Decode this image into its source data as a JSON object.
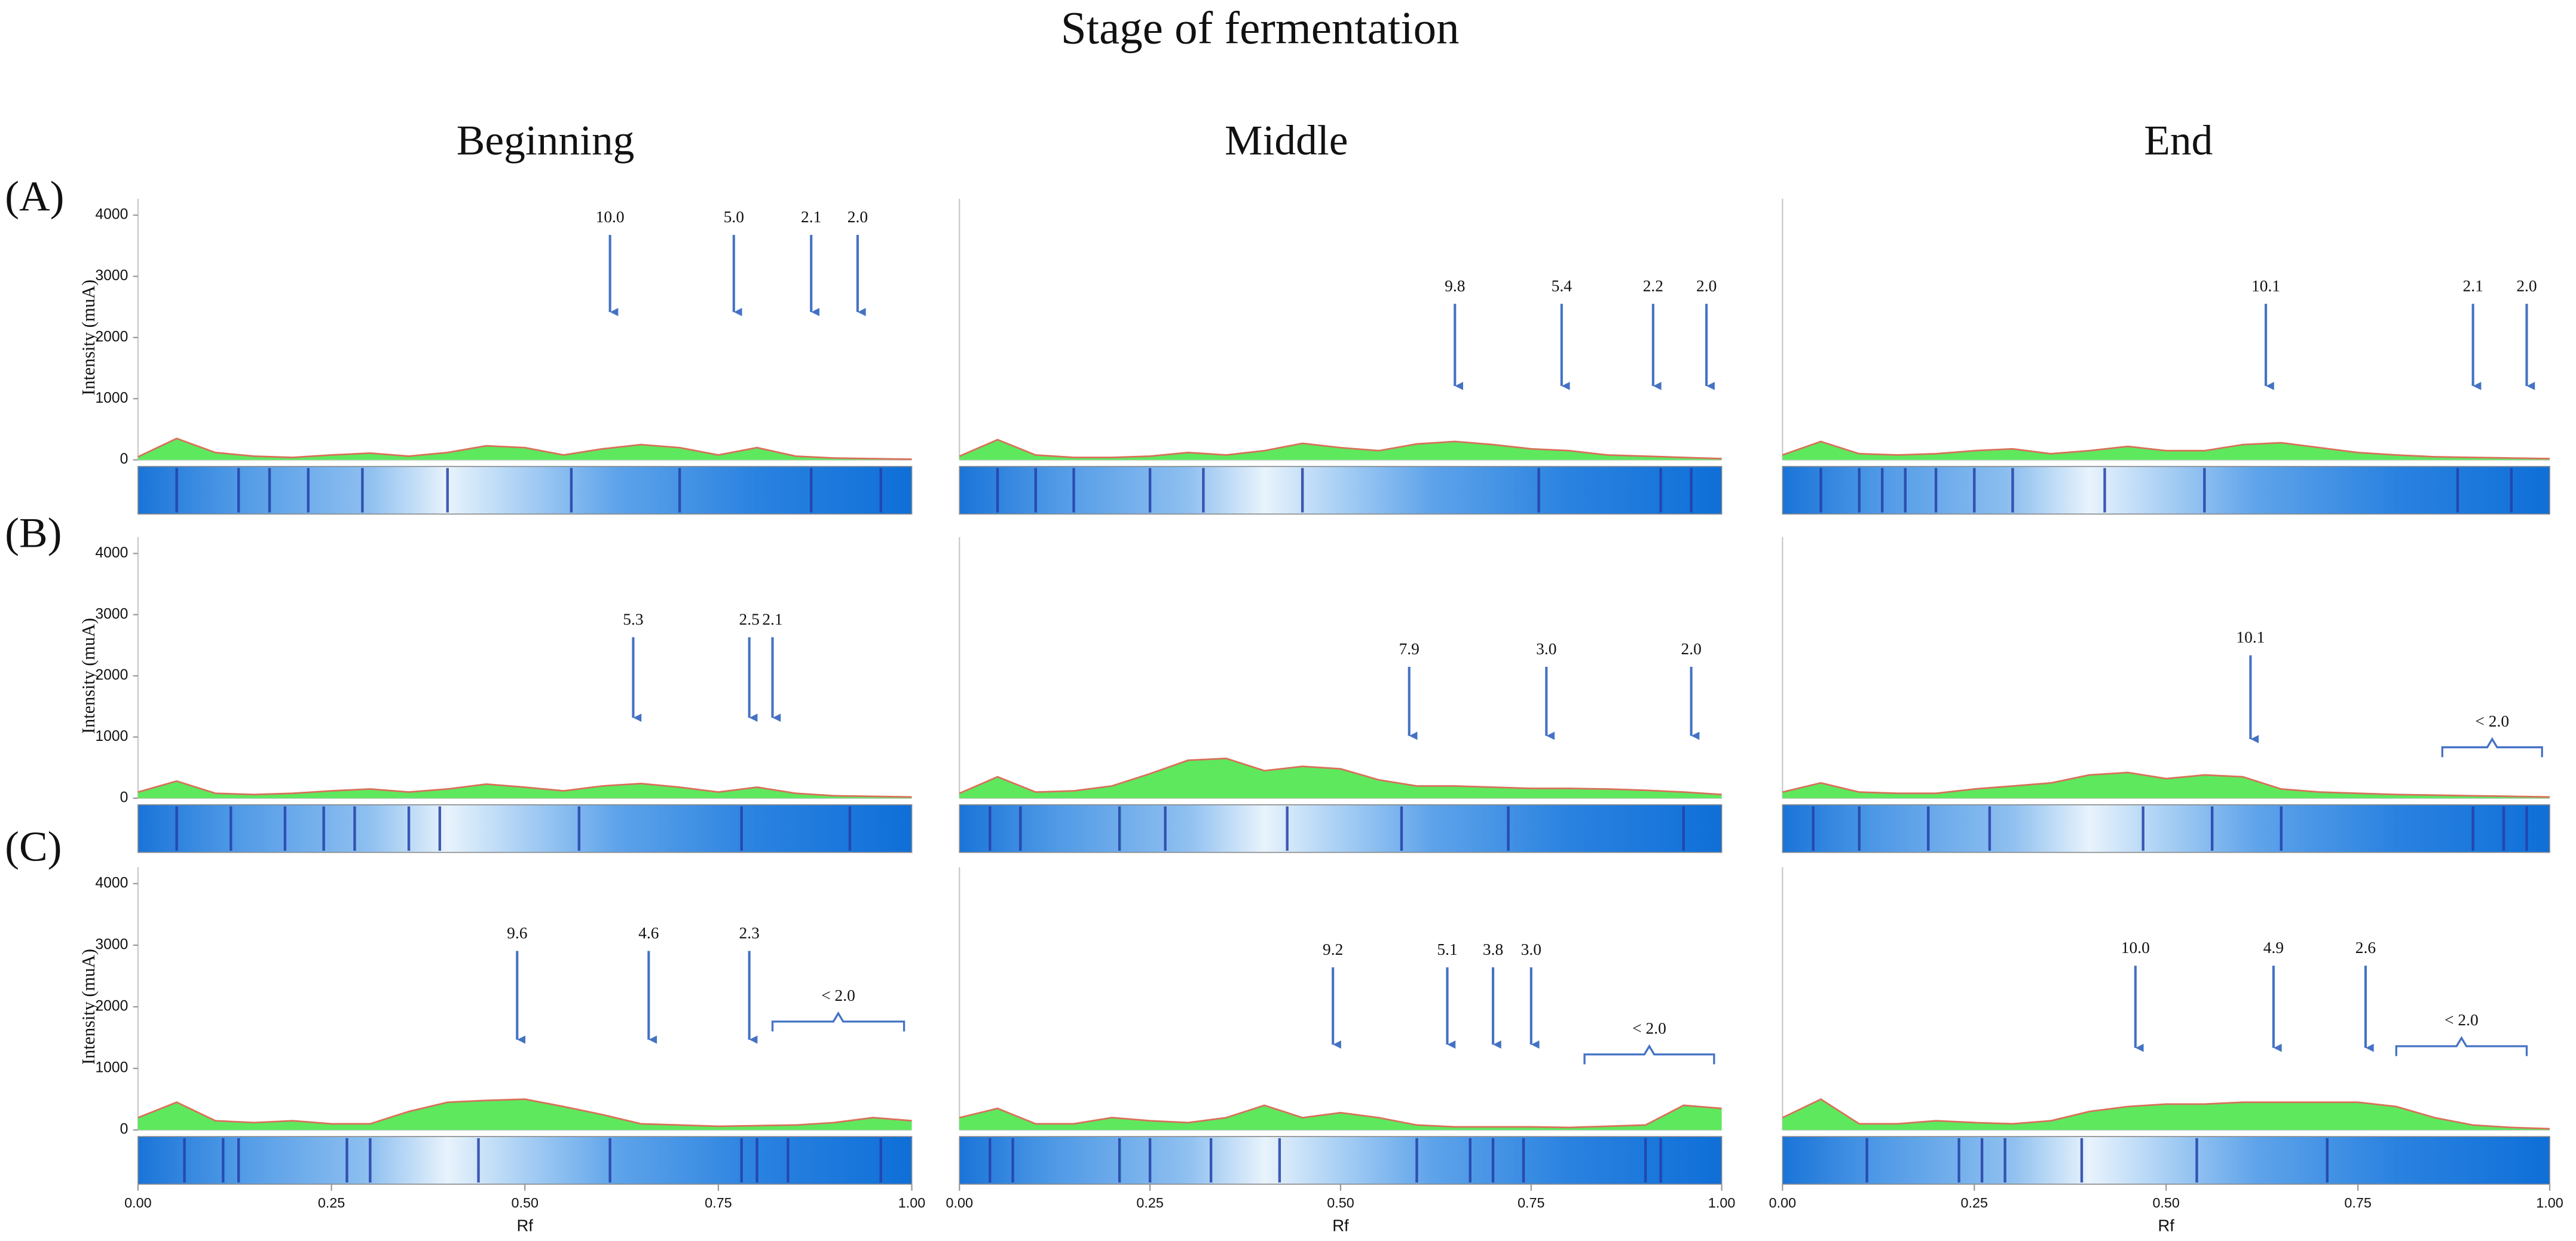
{
  "title": "Stage of fermentation",
  "columns": [
    "Beginning",
    "Middle",
    "End"
  ],
  "rows": [
    "(A)",
    "(B)",
    "(C)"
  ],
  "chart_data": [
    {
      "type": "area",
      "x": [
        0,
        0.05,
        0.1,
        0.15,
        0.2,
        0.25,
        0.3,
        0.35,
        0.4,
        0.45,
        0.5,
        0.55,
        0.6,
        0.65,
        0.7,
        0.75,
        0.8,
        0.85,
        0.9,
        0.95,
        1
      ],
      "values": [
        50,
        350,
        120,
        60,
        40,
        80,
        110,
        60,
        120,
        230,
        200,
        80,
        180,
        250,
        200,
        80,
        200,
        60,
        30,
        20,
        10
      ],
      "color": "#5ee85e",
      "line_color": "#d9705a",
      "xlim": [
        0,
        1
      ],
      "ylim": [
        0,
        4000
      ],
      "yticks": [
        0,
        1000,
        2000,
        3000,
        4000
      ],
      "y_label": "Intensity (muA)",
      "bands": [
        0.05,
        0.13,
        0.17,
        0.22,
        0.29,
        0.4,
        0.56,
        0.7,
        0.87,
        0.96
      ],
      "annotations": [
        {
          "label": "10.0",
          "x": 0.61
        },
        {
          "label": "5.0",
          "x": 0.77
        },
        {
          "label": "2.1",
          "x": 0.87
        },
        {
          "label": "2.0",
          "x": 0.93
        }
      ]
    },
    {
      "type": "area",
      "x": [
        0,
        0.05,
        0.1,
        0.15,
        0.2,
        0.25,
        0.3,
        0.35,
        0.4,
        0.45,
        0.5,
        0.55,
        0.6,
        0.65,
        0.7,
        0.75,
        0.8,
        0.85,
        0.9,
        0.95,
        1
      ],
      "values": [
        60,
        330,
        80,
        40,
        40,
        60,
        120,
        80,
        150,
        270,
        200,
        150,
        260,
        300,
        250,
        180,
        150,
        80,
        60,
        40,
        20
      ],
      "color": "#5ee85e",
      "line_color": "#d9705a",
      "xlim": [
        0,
        1
      ],
      "ylim": [
        0,
        4000
      ],
      "bands": [
        0.05,
        0.1,
        0.15,
        0.25,
        0.32,
        0.45,
        0.76,
        0.92,
        0.96
      ],
      "annotations": [
        {
          "label": "9.8",
          "x": 0.65
        },
        {
          "label": "5.4",
          "x": 0.79
        },
        {
          "label": "2.2",
          "x": 0.91
        },
        {
          "label": "2.0",
          "x": 0.98
        }
      ]
    },
    {
      "type": "area",
      "x": [
        0,
        0.05,
        0.1,
        0.15,
        0.2,
        0.25,
        0.3,
        0.35,
        0.4,
        0.45,
        0.5,
        0.55,
        0.6,
        0.65,
        0.7,
        0.75,
        0.8,
        0.85,
        0.9,
        0.95,
        1
      ],
      "values": [
        80,
        300,
        100,
        80,
        100,
        150,
        180,
        100,
        150,
        220,
        150,
        150,
        250,
        280,
        200,
        120,
        80,
        50,
        40,
        30,
        20
      ],
      "color": "#5ee85e",
      "line_color": "#d9705a",
      "xlim": [
        0,
        1
      ],
      "ylim": [
        0,
        4000
      ],
      "bands": [
        0.05,
        0.1,
        0.13,
        0.16,
        0.2,
        0.25,
        0.3,
        0.42,
        0.55,
        0.88,
        0.95
      ],
      "annotations": [
        {
          "label": "10.1",
          "x": 0.63
        },
        {
          "label": "2.1",
          "x": 0.9
        },
        {
          "label": "2.0",
          "x": 0.97
        }
      ]
    },
    {
      "type": "area",
      "x": [
        0,
        0.05,
        0.1,
        0.15,
        0.2,
        0.25,
        0.3,
        0.35,
        0.4,
        0.45,
        0.5,
        0.55,
        0.6,
        0.65,
        0.7,
        0.75,
        0.8,
        0.85,
        0.9,
        0.95,
        1
      ],
      "values": [
        100,
        280,
        80,
        60,
        80,
        120,
        150,
        100,
        150,
        230,
        180,
        120,
        200,
        240,
        180,
        100,
        180,
        80,
        40,
        30,
        20
      ],
      "color": "#5ee85e",
      "line_color": "#d9705a",
      "xlim": [
        0,
        1
      ],
      "ylim": [
        0,
        4000
      ],
      "yticks": [
        0,
        1000,
        2000,
        3000,
        4000
      ],
      "y_label": "Intensity (muA)",
      "bands": [
        0.05,
        0.12,
        0.19,
        0.24,
        0.28,
        0.35,
        0.39,
        0.57,
        0.78,
        0.92
      ],
      "annotations": [
        {
          "label": "5.3",
          "x": 0.64
        },
        {
          "label": "2.5",
          "x": 0.79
        },
        {
          "label": "2.1",
          "x": 0.82
        }
      ]
    },
    {
      "type": "area",
      "x": [
        0,
        0.05,
        0.1,
        0.15,
        0.2,
        0.25,
        0.3,
        0.35,
        0.4,
        0.45,
        0.5,
        0.55,
        0.6,
        0.65,
        0.7,
        0.75,
        0.8,
        0.85,
        0.9,
        0.95,
        1
      ],
      "values": [
        80,
        350,
        100,
        120,
        200,
        400,
        620,
        650,
        450,
        520,
        480,
        300,
        200,
        200,
        180,
        160,
        160,
        150,
        130,
        100,
        60
      ],
      "color": "#5ee85e",
      "line_color": "#d9705a",
      "xlim": [
        0,
        1
      ],
      "ylim": [
        0,
        4000
      ],
      "bands": [
        0.04,
        0.08,
        0.21,
        0.27,
        0.43,
        0.58,
        0.72,
        0.95
      ],
      "annotations": [
        {
          "label": "7.9",
          "x": 0.59
        },
        {
          "label": "3.0",
          "x": 0.77
        },
        {
          "label": "2.0",
          "x": 0.96
        }
      ]
    },
    {
      "type": "area",
      "x": [
        0,
        0.05,
        0.1,
        0.15,
        0.2,
        0.25,
        0.3,
        0.35,
        0.4,
        0.45,
        0.5,
        0.55,
        0.6,
        0.65,
        0.7,
        0.75,
        0.8,
        0.85,
        0.9,
        0.95,
        1
      ],
      "values": [
        100,
        250,
        100,
        80,
        80,
        150,
        200,
        250,
        380,
        420,
        320,
        380,
        350,
        150,
        100,
        80,
        60,
        50,
        40,
        30,
        20
      ],
      "color": "#5ee85e",
      "line_color": "#d9705a",
      "xlim": [
        0,
        1
      ],
      "ylim": [
        0,
        4000
      ],
      "bands": [
        0.04,
        0.1,
        0.19,
        0.27,
        0.47,
        0.56,
        0.65,
        0.9,
        0.94,
        0.97
      ],
      "annotations": [
        {
          "label": "10.1",
          "x": 0.61
        },
        {
          "label": "< 2.0",
          "x": [
            0.86,
            0.99
          ]
        }
      ]
    },
    {
      "type": "area",
      "x": [
        0,
        0.05,
        0.1,
        0.15,
        0.2,
        0.25,
        0.3,
        0.35,
        0.4,
        0.45,
        0.5,
        0.55,
        0.6,
        0.65,
        0.7,
        0.75,
        0.8,
        0.85,
        0.9,
        0.95,
        1
      ],
      "values": [
        200,
        450,
        150,
        120,
        150,
        100,
        100,
        300,
        450,
        480,
        500,
        380,
        250,
        100,
        80,
        60,
        70,
        80,
        120,
        200,
        150
      ],
      "color": "#5ee85e",
      "line_color": "#d9705a",
      "xlim": [
        0,
        1
      ],
      "ylim": [
        0,
        4000
      ],
      "yticks": [
        0,
        1000,
        2000,
        3000,
        4000
      ],
      "y_label": "Intensity (muA)",
      "xticks": [
        {
          "value": 0,
          "label": "0.00"
        },
        {
          "value": 0.25,
          "label": "0.25"
        },
        {
          "value": 0.5,
          "label": "0.50"
        },
        {
          "value": 0.75,
          "label": "0.75"
        },
        {
          "value": 1,
          "label": "1.00"
        }
      ],
      "x_label": "Rf",
      "bands": [
        0.06,
        0.11,
        0.13,
        0.27,
        0.3,
        0.44,
        0.61,
        0.78,
        0.8,
        0.84,
        0.96
      ],
      "annotations": [
        {
          "label": "9.6",
          "x": 0.49
        },
        {
          "label": "4.6",
          "x": 0.66
        },
        {
          "label": "2.3",
          "x": 0.79
        },
        {
          "label": "< 2.0",
          "x": [
            0.82,
            0.99
          ]
        }
      ]
    },
    {
      "type": "area",
      "x": [
        0,
        0.05,
        0.1,
        0.15,
        0.2,
        0.25,
        0.3,
        0.35,
        0.4,
        0.45,
        0.5,
        0.55,
        0.6,
        0.65,
        0.7,
        0.75,
        0.8,
        0.85,
        0.9,
        0.95,
        1
      ],
      "values": [
        200,
        350,
        100,
        100,
        200,
        150,
        120,
        200,
        400,
        200,
        280,
        200,
        80,
        50,
        50,
        50,
        40,
        60,
        80,
        400,
        350
      ],
      "color": "#5ee85e",
      "line_color": "#d9705a",
      "xlim": [
        0,
        1
      ],
      "ylim": [
        0,
        4000
      ],
      "xticks": [
        {
          "value": 0,
          "label": "0.00"
        },
        {
          "value": 0.25,
          "label": "0.25"
        },
        {
          "value": 0.5,
          "label": "0.50"
        },
        {
          "value": 0.75,
          "label": "0.75"
        },
        {
          "value": 1,
          "label": "1.00"
        }
      ],
      "x_label": "Rf",
      "bands": [
        0.04,
        0.07,
        0.21,
        0.25,
        0.33,
        0.42,
        0.6,
        0.67,
        0.7,
        0.74,
        0.9,
        0.92
      ],
      "annotations": [
        {
          "label": "9.2",
          "x": 0.49
        },
        {
          "label": "5.1",
          "x": 0.64
        },
        {
          "label": "3.8",
          "x": 0.7
        },
        {
          "label": "3.0",
          "x": 0.75
        },
        {
          "label": "< 2.0",
          "x": [
            0.82,
            0.99
          ]
        }
      ]
    },
    {
      "type": "area",
      "x": [
        0,
        0.05,
        0.1,
        0.15,
        0.2,
        0.25,
        0.3,
        0.35,
        0.4,
        0.45,
        0.5,
        0.55,
        0.6,
        0.65,
        0.7,
        0.75,
        0.8,
        0.85,
        0.9,
        0.95,
        1
      ],
      "values": [
        200,
        500,
        100,
        100,
        150,
        120,
        100,
        150,
        300,
        380,
        420,
        420,
        450,
        450,
        450,
        450,
        380,
        200,
        80,
        40,
        20
      ],
      "color": "#5ee85e",
      "line_color": "#d9705a",
      "xlim": [
        0,
        1
      ],
      "ylim": [
        0,
        4000
      ],
      "xticks": [
        {
          "value": 0,
          "label": "0.00"
        },
        {
          "value": 0.25,
          "label": "0.25"
        },
        {
          "value": 0.5,
          "label": "0.50"
        },
        {
          "value": 0.75,
          "label": "0.75"
        },
        {
          "value": 1,
          "label": "1.00"
        }
      ],
      "x_label": "Rf",
      "bands": [
        0.11,
        0.23,
        0.26,
        0.29,
        0.39,
        0.54,
        0.71
      ],
      "annotations": [
        {
          "label": "10.0",
          "x": 0.46
        },
        {
          "label": "4.9",
          "x": 0.64
        },
        {
          "label": "2.6",
          "x": 0.76
        },
        {
          "label": "< 2.0",
          "x": [
            0.8,
            0.97
          ]
        }
      ]
    }
  ]
}
